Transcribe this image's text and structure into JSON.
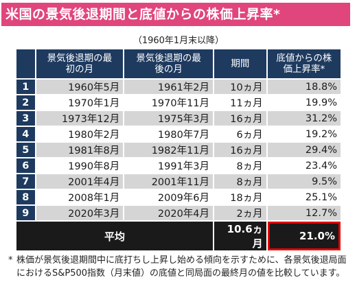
{
  "title": "米国の景気後退期間と底値からの株価上昇率*",
  "subtitle": "（1960年1月末以降）",
  "headers": [
    "",
    "景気後退期の最初の月",
    "景気後退期の最後の月",
    "期間",
    "底値からの株価上昇率*"
  ],
  "rows": [
    {
      "no": "1",
      "start": "1960年5月",
      "end": "1961年2月",
      "period": "10ヵ月",
      "rate": "18.8%"
    },
    {
      "no": "2",
      "start": "1970年1月",
      "end": "1970年11月",
      "period": "11ヵ月",
      "rate": "19.9%"
    },
    {
      "no": "3",
      "start": "1973年12月",
      "end": "1975年3月",
      "period": "16ヵ月",
      "rate": "31.2%"
    },
    {
      "no": "4",
      "start": "1980年2月",
      "end": "1980年7月",
      "period": "6ヵ月",
      "rate": "19.2%"
    },
    {
      "no": "5",
      "start": "1981年8月",
      "end": "1982年11月",
      "period": "16ヵ月",
      "rate": "29.4%"
    },
    {
      "no": "6",
      "start": "1990年8月",
      "end": "1991年3月",
      "period": "8ヵ月",
      "rate": "23.4%"
    },
    {
      "no": "7",
      "start": "2001年4月",
      "end": "2001年11月",
      "period": "8ヵ月",
      "rate": "9.5%"
    },
    {
      "no": "8",
      "start": "2008年1月",
      "end": "2009年6月",
      "period": "18ヵ月",
      "rate": "25.1%"
    },
    {
      "no": "9",
      "start": "2020年3月",
      "end": "2020年4月",
      "period": "2ヵ月",
      "rate": "12.7%"
    }
  ],
  "average": {
    "label": "平均",
    "period": "10.6ヵ月",
    "rate": "21.0%"
  },
  "footnote": {
    "mark": "*",
    "text": "株価が景気後退期間中に底打ちし上昇し始める傾向を示すために、各景気後退局面におけるS&P500指数（月末値）の底値と同局面の最終月の値を比較しています。"
  },
  "colors": {
    "title_bg": "#e0457b",
    "header_bg": "#1e3a5f",
    "row_alt": "#d5d5d5",
    "highlight": "#e00000"
  }
}
